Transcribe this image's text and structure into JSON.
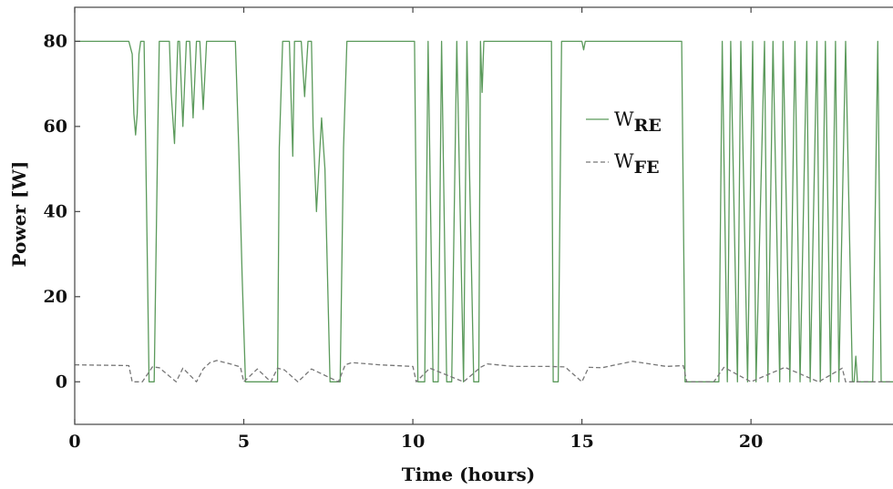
{
  "chart_data": {
    "type": "line",
    "xlabel": "Time (hours)",
    "ylabel": "Power [W]",
    "xlim": [
      0,
      24.2
    ],
    "ylim": [
      -10,
      88
    ],
    "x_ticks": [
      0,
      5,
      10,
      15,
      20
    ],
    "y_ticks": [
      0,
      20,
      40,
      60,
      80
    ],
    "grid": false,
    "legend_position": "center-right",
    "series": [
      {
        "name": "W",
        "subscript": "RE",
        "style": "solid",
        "color": "#5b9a5b",
        "x": [
          0,
          1.6,
          1.7,
          1.75,
          1.8,
          1.85,
          1.9,
          1.95,
          1.97,
          2.05,
          2.1,
          2.2,
          2.35,
          2.45,
          2.5,
          2.8,
          2.85,
          2.95,
          3.0,
          3.05,
          3.1,
          3.2,
          3.3,
          3.4,
          3.5,
          3.6,
          3.7,
          3.8,
          3.9,
          3.95,
          4.2,
          4.6,
          4.75,
          4.85,
          4.95,
          5.05,
          5.2,
          5.4,
          5.5,
          5.6,
          5.8,
          6.0,
          6.05,
          6.15,
          6.35,
          6.45,
          6.5,
          6.7,
          6.8,
          6.9,
          7.0,
          7.05,
          7.15,
          7.3,
          7.4,
          7.55,
          7.6,
          7.7,
          7.75,
          7.85,
          7.95,
          8.05,
          10.05,
          10.15,
          10.35,
          10.45,
          10.6,
          10.75,
          10.85,
          11.0,
          11.15,
          11.3,
          11.5,
          11.6,
          11.8,
          11.95,
          12.0,
          12.05,
          12.1,
          13.5,
          14.1,
          14.15,
          14.3,
          14.4,
          15.0,
          15.05,
          15.1,
          17.95,
          18.05,
          18.9,
          19.05,
          19.15,
          19.3,
          19.4,
          19.6,
          19.7,
          19.9,
          20.05,
          20.15,
          20.4,
          20.5,
          20.65,
          20.85,
          20.95,
          21.15,
          21.3,
          21.45,
          21.65,
          21.75,
          21.95,
          22.05,
          22.2,
          22.35,
          22.5,
          22.6,
          22.8,
          23.0,
          23.05,
          23.1,
          23.15,
          23.5,
          23.6,
          23.75,
          23.85,
          24.2
        ],
        "y": [
          80,
          80,
          77,
          63,
          58,
          63,
          77,
          80,
          80,
          80,
          55,
          0,
          0,
          55,
          80,
          80,
          68,
          56,
          68,
          80,
          80,
          60,
          80,
          80,
          62,
          80,
          80,
          64,
          80,
          80,
          80,
          80,
          80,
          55,
          25,
          0,
          0,
          0,
          0,
          0,
          0,
          0,
          55,
          80,
          80,
          53,
          80,
          80,
          67,
          80,
          80,
          60,
          40,
          62,
          50,
          0,
          0,
          0,
          0,
          0,
          55,
          80,
          80,
          0,
          0,
          80,
          0,
          0,
          80,
          0,
          0,
          80,
          0,
          80,
          0,
          0,
          80,
          68,
          80,
          80,
          80,
          0,
          0,
          80,
          80,
          78,
          80,
          80,
          0,
          0,
          0,
          80,
          0,
          80,
          0,
          80,
          0,
          80,
          0,
          80,
          0,
          80,
          0,
          80,
          0,
          80,
          0,
          80,
          0,
          80,
          0,
          80,
          0,
          80,
          0,
          80,
          0,
          0,
          6,
          0,
          0,
          0,
          80,
          0,
          0
        ]
      },
      {
        "name": "W",
        "subscript": "FE",
        "style": "dashed",
        "color": "#777777",
        "x": [
          0,
          1.6,
          1.7,
          2.0,
          2.3,
          2.5,
          3.0,
          3.2,
          3.6,
          3.8,
          4.0,
          4.2,
          4.6,
          4.9,
          5.0,
          5.4,
          5.8,
          6.0,
          6.2,
          6.6,
          7.0,
          7.8,
          8.0,
          8.2,
          9.0,
          10.0,
          10.1,
          10.5,
          11.5,
          12.0,
          12.2,
          13.0,
          14.0,
          14.5,
          15.0,
          15.2,
          15.6,
          16.0,
          16.5,
          17.0,
          17.5,
          18.0,
          18.1,
          18.9,
          19.2,
          20.0,
          21.0,
          22.0,
          22.7,
          22.8,
          24.2
        ],
        "y": [
          4,
          3.8,
          0,
          0,
          3.5,
          3.3,
          0,
          3.2,
          0,
          3.0,
          4.5,
          5.0,
          4.2,
          3.5,
          0,
          3.0,
          0,
          3.2,
          2.8,
          0,
          3.0,
          0,
          4.0,
          4.5,
          4.0,
          3.6,
          0,
          3.2,
          0,
          3.4,
          4.2,
          3.6,
          3.6,
          3.5,
          0,
          3.4,
          3.3,
          4.0,
          4.8,
          4.2,
          3.6,
          3.8,
          0,
          0,
          3.4,
          0,
          3.4,
          0,
          3.2,
          0,
          0
        ]
      }
    ]
  }
}
